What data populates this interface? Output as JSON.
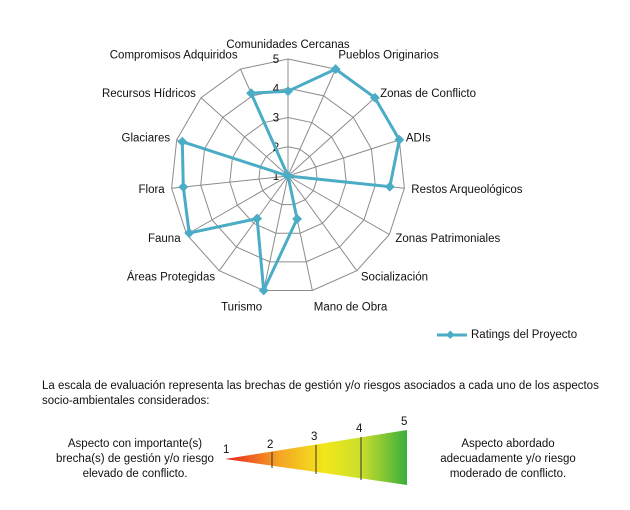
{
  "chart_data": {
    "type": "radar",
    "categories": [
      "Comunidades Cercanas",
      "Pueblos Originarios",
      "Zonas de Conflicto",
      "ADIs",
      "Restos Arqueológicos",
      "Zonas Patrimoniales",
      "Socialización",
      "Mano de Obra",
      "Turismo",
      "Áreas Protegidas",
      "Fauna",
      "Flora",
      "Glaciares",
      "Recursos Hídricos",
      "Compromisos Adquiridos"
    ],
    "series": [
      {
        "name": "Ratings del Proyecto",
        "values": [
          3.9,
          5,
          5,
          5,
          4.5,
          1,
          1,
          2.5,
          5,
          2.8,
          4.9,
          4.6,
          4.8,
          1,
          4.1
        ]
      }
    ],
    "ticks": [
      "1",
      "2",
      "3",
      "4",
      "5"
    ],
    "rlim": [
      1,
      5
    ],
    "grid": true,
    "legend_position": "bottom-right",
    "colors": {
      "series": "#4BACC6",
      "grid": "#8C8C8C"
    }
  },
  "texts": {
    "scale_description": "La escala  de evaluación representa las brechas de gestión y/o riesgos asociados a cada uno de los aspectos socio-ambientales considerados:",
    "left_description": "Aspecto con importante(s) brecha(s) de gestión y/o riesgo elevado de conflicto.",
    "right_description": "Aspecto abordado adecuadamente y/o riesgo moderado de conflicto."
  },
  "scale": {
    "labels": [
      "1",
      "2",
      "3",
      "4",
      "5"
    ],
    "colors": {
      "low": "#E8201E",
      "mid_low": "#F5A623",
      "mid": "#F2E71B",
      "mid_high": "#C9DE2B",
      "high": "#3AAE3D"
    }
  }
}
